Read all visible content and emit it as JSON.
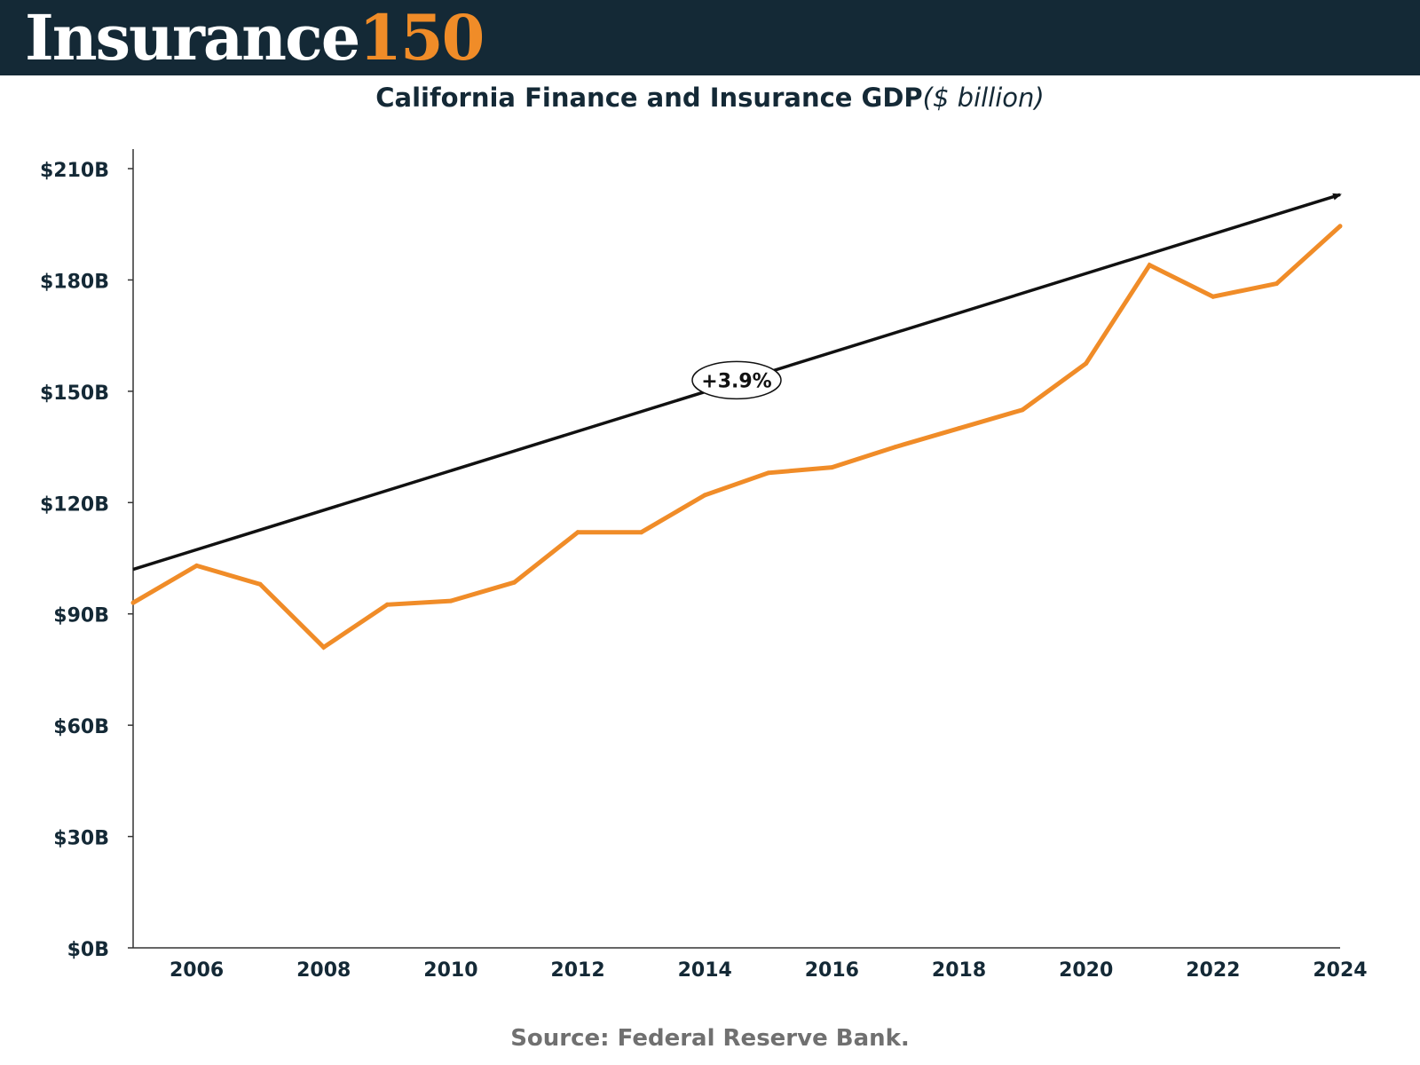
{
  "logo": {
    "word": "Insurance",
    "number": "150"
  },
  "title": "California Finance and Insurance GDP",
  "title_unit": "($ billion)",
  "source": "Source: Federal Reserve Bank.",
  "colors": {
    "header": "#142936",
    "accent": "#f08c28",
    "trend": "#111111",
    "text": "#142936",
    "source": "#707070"
  },
  "chart_data": {
    "type": "line",
    "x": [
      2005,
      2006,
      2007,
      2008,
      2009,
      2010,
      2011,
      2012,
      2013,
      2014,
      2015,
      2016,
      2017,
      2018,
      2019,
      2020,
      2021,
      2022,
      2023,
      2024
    ],
    "series": [
      {
        "values": [
          93,
          103,
          98,
          81,
          92.5,
          93.5,
          98.5,
          112,
          112,
          122,
          128,
          129.5,
          135,
          140,
          145,
          157.5,
          184,
          175.5,
          179,
          194.5
        ]
      }
    ],
    "trend_line": {
      "x": [
        2005,
        2024
      ],
      "y": [
        102,
        203
      ],
      "label": "+3.9%",
      "label_x": 2014.5,
      "label_y": 153
    },
    "x_ticks": [
      2006,
      2008,
      2010,
      2012,
      2014,
      2016,
      2018,
      2020,
      2022,
      2024
    ],
    "x_tick_labels": [
      "2006",
      "2008",
      "2010",
      "2012",
      "2014",
      "2016",
      "2018",
      "2020",
      "2022",
      "2024"
    ],
    "y_ticks": [
      0,
      30,
      60,
      90,
      120,
      150,
      180,
      210
    ],
    "y_tick_labels": [
      "$0B",
      "$30B",
      "$60B",
      "$90B",
      "$120B",
      "$150B",
      "$180B",
      "$210B"
    ],
    "xlim": [
      2005,
      2024
    ],
    "ylim": [
      0,
      215
    ],
    "grid": false,
    "legend": "none"
  }
}
